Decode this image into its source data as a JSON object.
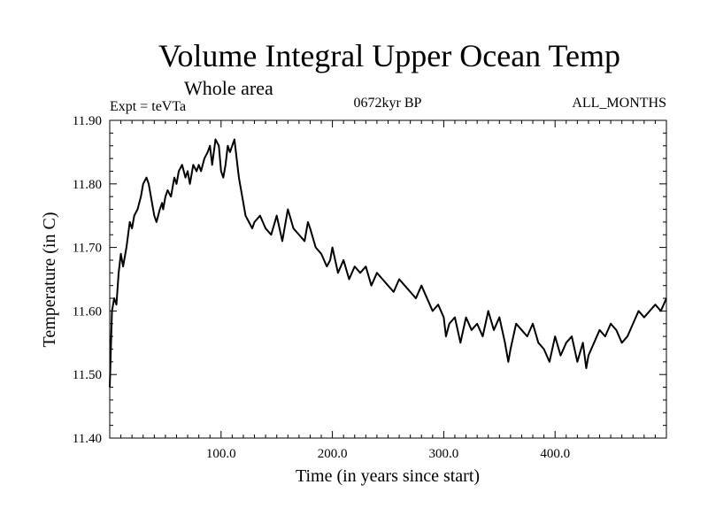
{
  "chart_data": {
    "type": "line",
    "title": "Volume Integral Upper Ocean Temp",
    "subtitle": "Whole area",
    "left_label": "Expt = teVTa",
    "center_label": "0672kyr BP",
    "right_label": "ALL_MONTHS",
    "xlabel": "Time (in years since start)",
    "ylabel": "Temperature (in C)",
    "xlim": [
      0,
      500
    ],
    "ylim": [
      11.4,
      11.9
    ],
    "x_ticks": [
      100,
      200,
      300,
      400
    ],
    "x_tick_labels": [
      "100.0",
      "200.0",
      "300.0",
      "400.0"
    ],
    "y_ticks": [
      11.4,
      11.5,
      11.6,
      11.7,
      11.8,
      11.9
    ],
    "y_tick_labels": [
      "11.40",
      "11.50",
      "11.60",
      "11.70",
      "11.80",
      "11.90"
    ],
    "grid": false,
    "series": [
      {
        "name": "Volume integral upper ocean temperature",
        "color": "#000000",
        "x": [
          0,
          2,
          4,
          6,
          8,
          10,
          12,
          15,
          18,
          20,
          22,
          25,
          28,
          30,
          33,
          35,
          38,
          40,
          42,
          45,
          47,
          48,
          50,
          52,
          55,
          58,
          60,
          62,
          65,
          68,
          70,
          72,
          75,
          78,
          80,
          82,
          85,
          88,
          90,
          92,
          95,
          98,
          100,
          102,
          104,
          106,
          108,
          110,
          112,
          114,
          116,
          118,
          120,
          122,
          125,
          128,
          130,
          135,
          140,
          145,
          150,
          155,
          158,
          160,
          165,
          170,
          175,
          178,
          180,
          185,
          190,
          195,
          198,
          200,
          205,
          210,
          215,
          220,
          225,
          230,
          235,
          240,
          245,
          250,
          255,
          260,
          265,
          270,
          275,
          280,
          285,
          290,
          295,
          300,
          302,
          305,
          310,
          315,
          320,
          325,
          330,
          335,
          340,
          345,
          350,
          355,
          358,
          360,
          365,
          370,
          375,
          380,
          385,
          390,
          395,
          400,
          405,
          410,
          415,
          420,
          425,
          428,
          430,
          435,
          440,
          445,
          450,
          455,
          460,
          465,
          470,
          475,
          480,
          485,
          490,
          495,
          500
        ],
        "values": [
          11.48,
          11.6,
          11.62,
          11.61,
          11.66,
          11.69,
          11.67,
          11.7,
          11.74,
          11.73,
          11.75,
          11.76,
          11.78,
          11.8,
          11.81,
          11.8,
          11.77,
          11.75,
          11.74,
          11.76,
          11.77,
          11.76,
          11.78,
          11.79,
          11.78,
          11.81,
          11.8,
          11.82,
          11.83,
          11.81,
          11.82,
          11.8,
          11.83,
          11.82,
          11.83,
          11.82,
          11.84,
          11.85,
          11.86,
          11.83,
          11.87,
          11.86,
          11.82,
          11.81,
          11.83,
          11.86,
          11.85,
          11.86,
          11.87,
          11.84,
          11.81,
          11.79,
          11.77,
          11.75,
          11.74,
          11.73,
          11.74,
          11.75,
          11.73,
          11.72,
          11.75,
          11.71,
          11.74,
          11.76,
          11.73,
          11.72,
          11.71,
          11.74,
          11.73,
          11.7,
          11.69,
          11.67,
          11.68,
          11.7,
          11.66,
          11.68,
          11.65,
          11.67,
          11.66,
          11.67,
          11.64,
          11.66,
          11.65,
          11.64,
          11.63,
          11.65,
          11.64,
          11.63,
          11.62,
          11.64,
          11.62,
          11.6,
          11.61,
          11.59,
          11.56,
          11.58,
          11.59,
          11.55,
          11.59,
          11.57,
          11.58,
          11.56,
          11.6,
          11.57,
          11.59,
          11.55,
          11.52,
          11.54,
          11.58,
          11.57,
          11.56,
          11.58,
          11.55,
          11.54,
          11.52,
          11.56,
          11.53,
          11.55,
          11.56,
          11.52,
          11.55,
          11.51,
          11.53,
          11.55,
          11.57,
          11.56,
          11.58,
          11.57,
          11.55,
          11.56,
          11.58,
          11.6,
          11.59,
          11.6,
          11.61,
          11.6,
          11.62
        ]
      }
    ]
  }
}
